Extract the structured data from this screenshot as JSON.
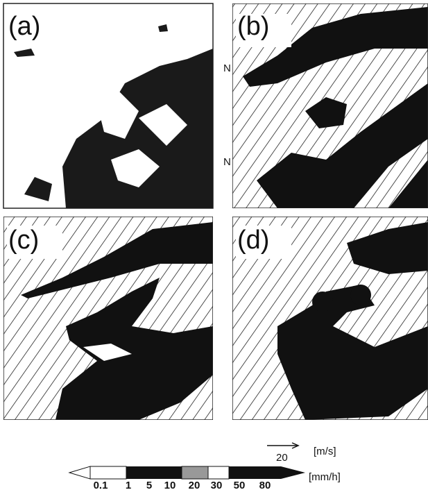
{
  "panels": [
    {
      "label": "(a)"
    },
    {
      "label": "(b)",
      "side_labels": [
        "N",
        "N"
      ]
    },
    {
      "label": "(c)"
    },
    {
      "label": "(d)"
    }
  ],
  "vector_key": {
    "value": "20",
    "unit": "[m/s]"
  },
  "colorbar": {
    "ticks": [
      "0.1",
      "1",
      "5",
      "10",
      "20",
      "30",
      "50",
      "80"
    ],
    "unit": "[mm/h]"
  }
}
